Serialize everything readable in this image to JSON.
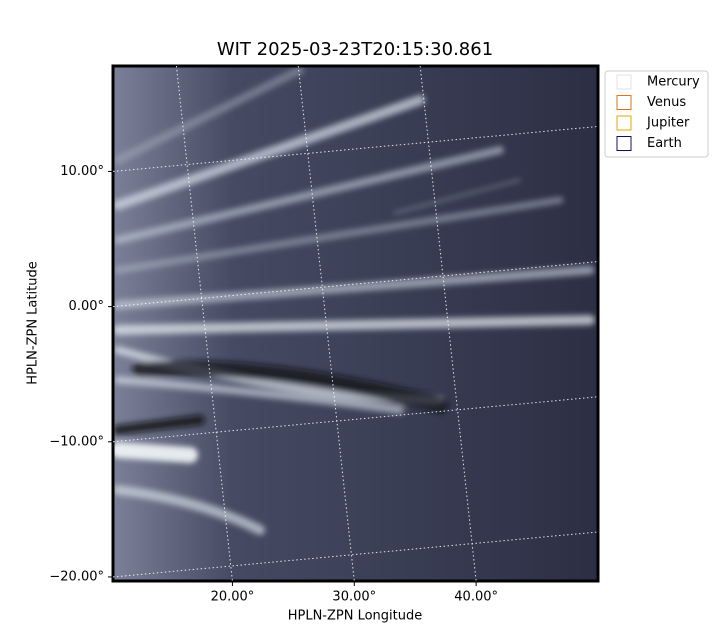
{
  "chart_data": {
    "type": "image",
    "title": "WIT 2025-03-23T20:15:30.861",
    "x_label": "HPLN-ZPN Longitude",
    "y_label": "HPLN-ZPN Latitude",
    "xlim": [
      10.2,
      50
    ],
    "ylim": [
      -20.3,
      17.8
    ],
    "xticks": [
      {
        "value": 20,
        "label": "20.00°"
      },
      {
        "value": 30,
        "label": "30.00°"
      },
      {
        "value": 40,
        "label": "40.00°"
      }
    ],
    "yticks": [
      {
        "value": -20,
        "label": "−20.00°"
      },
      {
        "value": -10,
        "label": "−10.00°"
      },
      {
        "value": 0,
        "label": "0.00°"
      },
      {
        "value": 10,
        "label": "10.00°"
      }
    ],
    "grid": true,
    "legend": [
      {
        "name": "Mercury",
        "color": "#e0e0e0"
      },
      {
        "name": "Venus",
        "color": "#e07020"
      },
      {
        "name": "Jupiter",
        "color": "#e0a800"
      },
      {
        "name": "Earth",
        "color": "#101060"
      }
    ]
  }
}
